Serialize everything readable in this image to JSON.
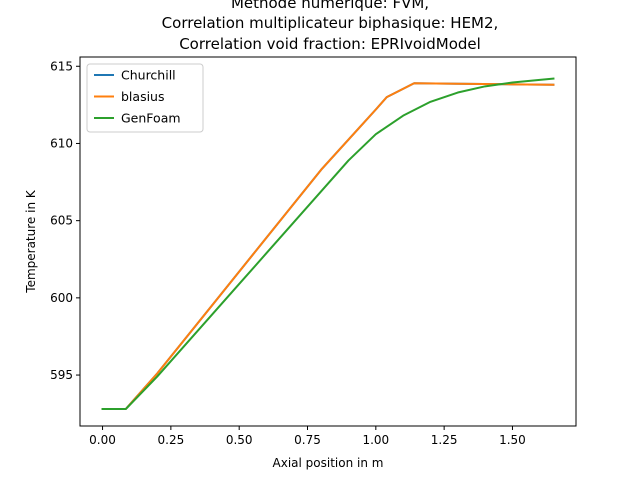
{
  "chart_data": {
    "type": "line",
    "title": [
      "Methode numerique: FVM,",
      "Correlation multiplicateur biphasique: HEM2,",
      "Correlation void fraction: EPRIvoidModel"
    ],
    "xlabel": "Axial position in m",
    "ylabel": "Temperature in K",
    "xlim": [
      -0.0825,
      1.7325
    ],
    "ylim": [
      591.7,
      615.6
    ],
    "xticks": [
      0.0,
      0.25,
      0.5,
      0.75,
      1.0,
      1.25,
      1.5
    ],
    "xtick_labels": [
      "0.00",
      "0.25",
      "0.50",
      "0.75",
      "1.00",
      "1.25",
      "1.50"
    ],
    "yticks": [
      595,
      600,
      605,
      610,
      615
    ],
    "ytick_labels": [
      "595",
      "600",
      "605",
      "610",
      "615"
    ],
    "grid": false,
    "legend_position": "top-left",
    "series": [
      {
        "name": "Churchill",
        "color": "#1f77b4",
        "x": [
          0.0,
          0.04,
          0.085,
          0.2,
          0.4,
          0.6,
          0.8,
          1.0,
          1.04,
          1.14,
          1.3,
          1.5,
          1.65
        ],
        "y": [
          592.8,
          592.8,
          592.8,
          595.1,
          599.5,
          603.9,
          608.3,
          612.2,
          613.0,
          613.9,
          613.87,
          613.83,
          613.8
        ]
      },
      {
        "name": "blasius",
        "color": "#ff7f0e",
        "x": [
          0.0,
          0.04,
          0.085,
          0.2,
          0.4,
          0.6,
          0.8,
          1.0,
          1.04,
          1.14,
          1.3,
          1.5,
          1.65
        ],
        "y": [
          592.8,
          592.8,
          592.8,
          595.1,
          599.5,
          603.9,
          608.3,
          612.2,
          613.0,
          613.9,
          613.87,
          613.83,
          613.8
        ]
      },
      {
        "name": "GenFoam",
        "color": "#2ca02c",
        "x": [
          0.0,
          0.04,
          0.085,
          0.2,
          0.3,
          0.4,
          0.5,
          0.6,
          0.7,
          0.8,
          0.9,
          1.0,
          1.1,
          1.2,
          1.3,
          1.4,
          1.5,
          1.6,
          1.65
        ],
        "y": [
          592.8,
          592.8,
          592.8,
          594.9,
          596.9,
          598.9,
          600.9,
          602.9,
          604.9,
          606.9,
          608.9,
          610.6,
          611.8,
          612.7,
          613.3,
          613.7,
          613.95,
          614.12,
          614.2
        ]
      }
    ]
  }
}
